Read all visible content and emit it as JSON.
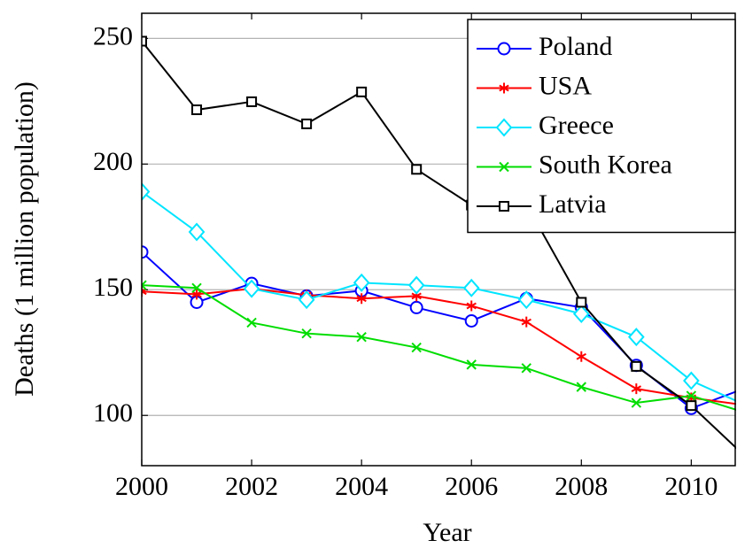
{
  "chart_data": {
    "type": "line",
    "x_label": "Year",
    "y_label": "Deaths (1 million population)",
    "x": [
      2000,
      2001,
      2002,
      2003,
      2004,
      2005,
      2006,
      2007,
      2008,
      2009,
      2010,
      2011
    ],
    "series": [
      {
        "name": "Poland",
        "color": "#0000ff",
        "marker": "circle",
        "values": [
          165,
          145,
          152.5,
          147.5,
          149.6,
          142.9,
          137.6,
          146.5,
          143,
          119.9,
          102.8,
          111
        ]
      },
      {
        "name": "USA",
        "color": "#ff0000",
        "marker": "asterisk",
        "values": [
          149.3,
          148.2,
          150.4,
          147.9,
          146.5,
          147.5,
          143.6,
          137.2,
          123.4,
          110.6,
          107,
          104
        ]
      },
      {
        "name": "Greece",
        "color": "#00e5ff",
        "marker": "diamond",
        "values": [
          189,
          173,
          150.4,
          146,
          152.8,
          151.8,
          150.7,
          146,
          140.4,
          131.2,
          113.8,
          104
        ]
      },
      {
        "name": "South Korea",
        "color": "#00dd00",
        "marker": "x",
        "values": [
          151.8,
          150.7,
          136.9,
          132.6,
          131.2,
          127,
          120.2,
          118.8,
          111.3,
          105,
          107.8,
          101
        ]
      },
      {
        "name": "Latvia",
        "color": "#000000",
        "marker": "square",
        "values": [
          248.9,
          221.6,
          224.8,
          216,
          228.7,
          197.9,
          183.7,
          184,
          145,
          119.5,
          103.9,
          83.3
        ]
      }
    ],
    "xlim": [
      2000,
      2010.8
    ],
    "xticks": [
      2000,
      2002,
      2004,
      2006,
      2008,
      2010
    ],
    "ylim": [
      80,
      260
    ],
    "yticks": [
      100,
      150,
      200,
      250
    ],
    "grid": true,
    "legend": "upper right"
  }
}
